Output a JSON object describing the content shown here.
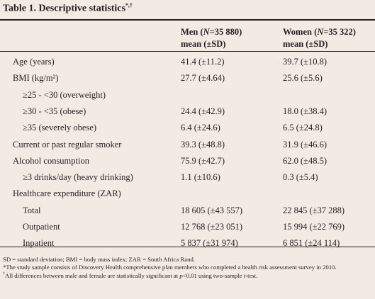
{
  "table": {
    "title": "Table 1. Descriptive statistics",
    "title_marks": "*,†",
    "header": {
      "men_pre": "Men (",
      "men_n": "N",
      "men_post": "=35 880)",
      "women_pre": "Women (",
      "women_n": "N",
      "women_post": "=35 322)",
      "stat": "mean (±SD)"
    },
    "rows": [
      {
        "label": "Age (years)",
        "men": "41.4 (±11.2)",
        "women": "39.7 (±10.8)"
      },
      {
        "label": "BMI (kg/m²)",
        "men": "27.7 (±4.64)",
        "women": "25.6 (±5.6)"
      },
      {
        "label": "≥25 - <30 (overweight)",
        "men": "",
        "women": ""
      },
      {
        "label": "≥30 - <35 (obese)",
        "men": "24.4 (±42.9)",
        "women": "18.0 (±38.4)"
      },
      {
        "label": "≥35 (severely obese)",
        "men": "6.4 (±24.6)",
        "women": "6.5 (±24.8)"
      },
      {
        "label": "Current or past regular smoker",
        "men": "39.3 (±48.8)",
        "women": "31.9 (±46.6)"
      },
      {
        "label": "Alcohol consumption",
        "men": "75.9 (±42.7)",
        "women": "62.0 (±48.5)"
      },
      {
        "label": "≥3 drinks/day (heavy drinking)",
        "men": "1.1 (±10.6)",
        "women": "0.3 (±5.4)"
      },
      {
        "label": "Healthcare expenditure (ZAR)",
        "men": "",
        "women": ""
      },
      {
        "label": "Total",
        "men": "18 605 (±43 557)",
        "women": "22 845 (±37 288)"
      },
      {
        "label": "Outpatient",
        "men": "12 768 (±23 051)",
        "women": "15 994 (±22 769)"
      },
      {
        "label": "Inpatient",
        "men": "5 837 (±31 974)",
        "women": "6 851 (±24 114)"
      }
    ],
    "notes": {
      "abbrev": "SD = standard deviation; BMI = body mass index; ZAR = South Africa Rand.",
      "star": "*The study sample consists of Discovery Health comprehensive plan members who completed a health risk assessment survey in 2010.",
      "dagger_mark": "†",
      "dagger_pre": "All differences between male and female are statistically significant at ",
      "dagger_p": "p",
      "dagger_mid": "<0.01 using two-sample ",
      "dagger_t": "t",
      "dagger_post": "-test."
    }
  }
}
